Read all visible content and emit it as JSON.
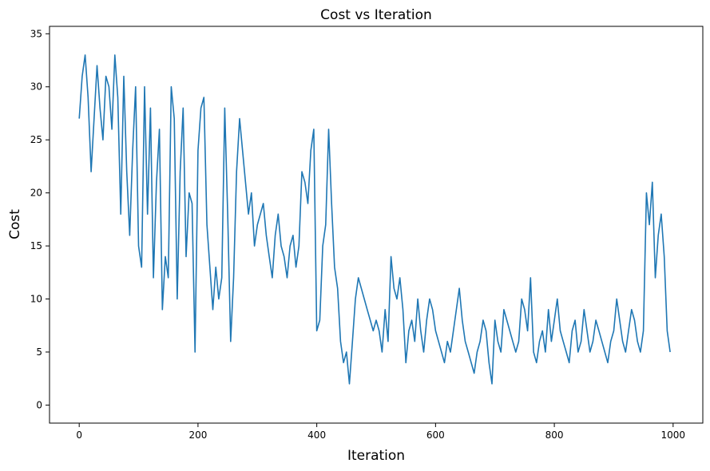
{
  "chart_data": {
    "type": "line",
    "title": "Cost vs Iteration",
    "xlabel": "Iteration",
    "ylabel": "Cost",
    "xlim": [
      -50,
      1050
    ],
    "ylim": [
      -1.7,
      35.7
    ],
    "xticks": [
      0,
      200,
      400,
      600,
      800,
      1000
    ],
    "yticks": [
      0,
      5,
      10,
      15,
      20,
      25,
      30,
      35
    ],
    "grid": false,
    "line_color": "#1f77b4",
    "series": [
      {
        "x_start": 0,
        "x_step": 5,
        "values": [
          27,
          31,
          33,
          29,
          22,
          27,
          32,
          28,
          25,
          31,
          30,
          26,
          33,
          29,
          18,
          31,
          22,
          16,
          24,
          30,
          15,
          13,
          30,
          18,
          28,
          12,
          21,
          26,
          9,
          14,
          12,
          30,
          27,
          10,
          22,
          28,
          14,
          20,
          19,
          5,
          24,
          28,
          29,
          17,
          13,
          9,
          13,
          10,
          12,
          28,
          18,
          6,
          12,
          22,
          27,
          24,
          21,
          18,
          20,
          15,
          17,
          18,
          19,
          16,
          14,
          12,
          16,
          18,
          15,
          14,
          12,
          15,
          16,
          13,
          15,
          22,
          21,
          19,
          24,
          26,
          7,
          8,
          15,
          17,
          26,
          19,
          13,
          11,
          6,
          4,
          5,
          2,
          6,
          10,
          12,
          11,
          10,
          9,
          8,
          7,
          8,
          7,
          5,
          9,
          6,
          14,
          11,
          10,
          12,
          9,
          4,
          7,
          8,
          6,
          10,
          7,
          5,
          8,
          10,
          9,
          7,
          6,
          5,
          4,
          6,
          5,
          7,
          9,
          11,
          8,
          6,
          5,
          4,
          3,
          5,
          6,
          8,
          7,
          4,
          2,
          8,
          6,
          5,
          9,
          8,
          7,
          6,
          5,
          6,
          10,
          9,
          7,
          12,
          5,
          4,
          6,
          7,
          5,
          9,
          6,
          8,
          10,
          7,
          6,
          5,
          4,
          7,
          8,
          5,
          6,
          9,
          7,
          5,
          6,
          8,
          7,
          6,
          5,
          4,
          6,
          7,
          10,
          8,
          6,
          5,
          7,
          9,
          8,
          6,
          5,
          7,
          20,
          17,
          21,
          12,
          16,
          18,
          14,
          7,
          5
        ]
      }
    ]
  }
}
